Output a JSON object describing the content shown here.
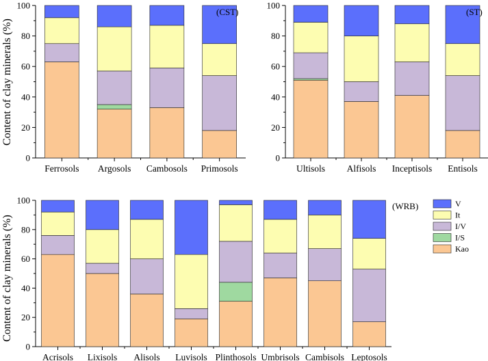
{
  "figure": {
    "ylabel": "Content of  clay minerals (%)"
  },
  "legend": {
    "items": [
      {
        "name": "V",
        "color": "#5b6ffc"
      },
      {
        "name": "It",
        "color": "#fdfdb1"
      },
      {
        "name": "I/V",
        "color": "#c8b8d8"
      },
      {
        "name": "I/S",
        "color": "#9fd9a0"
      },
      {
        "name": "Kao",
        "color": "#fbc793"
      }
    ]
  },
  "chart_data": [
    {
      "type": "bar",
      "stacked": true,
      "title": "(CST)",
      "ylabel": "Content of  clay minerals (%)",
      "ylim": [
        0,
        100
      ],
      "yticks": [
        "0",
        "20",
        "40",
        "60",
        "80",
        "100"
      ],
      "categories": [
        "Ferrosols",
        "Argosols",
        "Cambosols",
        "Primosols"
      ],
      "series": [
        {
          "name": "Kao",
          "values": [
            63,
            32,
            33,
            18
          ]
        },
        {
          "name": "I/S",
          "values": [
            0,
            3,
            0,
            0
          ]
        },
        {
          "name": "I/V",
          "values": [
            12,
            22,
            26,
            36
          ]
        },
        {
          "name": "It",
          "values": [
            17,
            29,
            28,
            21
          ]
        },
        {
          "name": "V",
          "values": [
            8,
            14,
            13,
            25
          ]
        }
      ]
    },
    {
      "type": "bar",
      "stacked": true,
      "title": "(ST)",
      "ylim": [
        0,
        100
      ],
      "yticks": [
        "0",
        "20",
        "40",
        "60",
        "80",
        "100"
      ],
      "categories": [
        "Ultisols",
        "Alfisols",
        "Inceptisols",
        "Entisols"
      ],
      "series": [
        {
          "name": "Kao",
          "values": [
            51,
            37,
            41,
            18
          ]
        },
        {
          "name": "I/S",
          "values": [
            1,
            0,
            0,
            0
          ]
        },
        {
          "name": "I/V",
          "values": [
            17,
            13,
            22,
            36
          ]
        },
        {
          "name": "It",
          "values": [
            20,
            30,
            25,
            21
          ]
        },
        {
          "name": "V",
          "values": [
            11,
            20,
            12,
            25
          ]
        }
      ]
    },
    {
      "type": "bar",
      "stacked": true,
      "title": "(WRB)",
      "ylabel": "Content of  clay minerals (%)",
      "ylim": [
        0,
        100
      ],
      "yticks": [
        "0",
        "20",
        "40",
        "60",
        "80",
        "100"
      ],
      "categories": [
        "Acrisols",
        "Lixisols",
        "Alisols",
        "Luvisols",
        "Plinthosols",
        "Umbrisols",
        "Cambisols",
        "Leptosols"
      ],
      "series": [
        {
          "name": "Kao",
          "values": [
            63,
            50,
            36,
            19,
            31,
            47,
            45,
            17
          ]
        },
        {
          "name": "I/S",
          "values": [
            0,
            0,
            0,
            0,
            13,
            0,
            0,
            0
          ]
        },
        {
          "name": "I/V",
          "values": [
            13,
            7,
            24,
            7,
            28,
            17,
            22,
            36
          ]
        },
        {
          "name": "It",
          "values": [
            16,
            23,
            27,
            37,
            25,
            23,
            23,
            21
          ]
        },
        {
          "name": "V",
          "values": [
            8,
            20,
            13,
            37,
            3,
            13,
            10,
            26
          ]
        }
      ]
    }
  ]
}
